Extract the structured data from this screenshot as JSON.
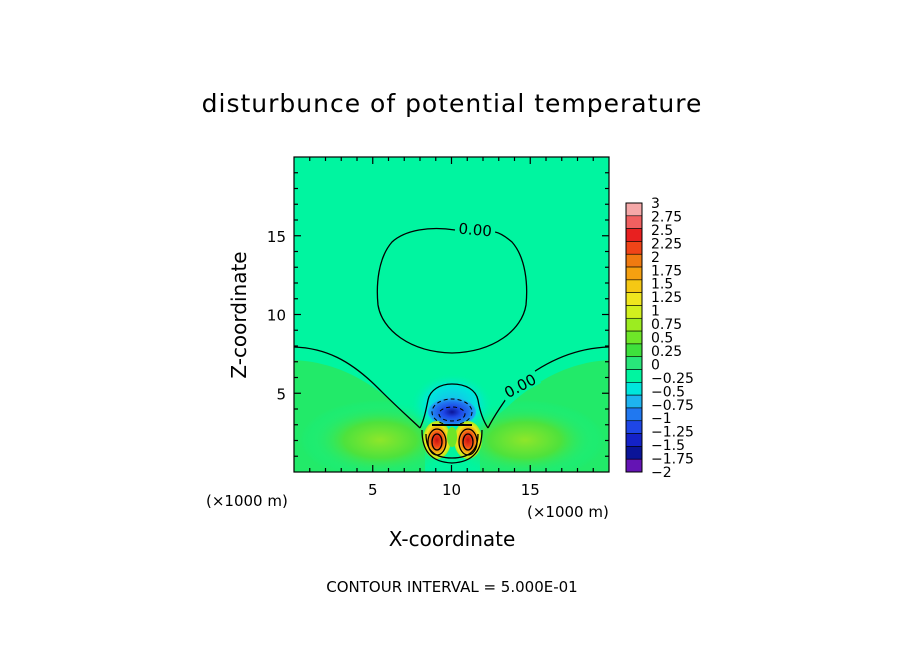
{
  "chart_data": {
    "type": "heatmap",
    "title": "disturbunce of potential temperature",
    "xlabel": "X-coordinate",
    "ylabel": "Z-coordinate",
    "x_unit_label": "(×1000 m)",
    "y_unit_label": "(×1000 m)",
    "footer": "CONTOUR INTERVAL = 5.000E-01",
    "xlim": [
      0,
      20
    ],
    "ylim": [
      0,
      20
    ],
    "xticks": [
      5,
      10,
      15
    ],
    "yticks": [
      5,
      10,
      15
    ],
    "contour_labels": [
      {
        "text": "0.00",
        "x": 11.5,
        "z": 15.3
      },
      {
        "text": "0.00",
        "x": 14.4,
        "z": 5.4
      }
    ],
    "colorbar": {
      "min": -2,
      "max": 3,
      "step": 0.25,
      "labels": [
        "3",
        "2.75",
        "2.5",
        "2.25",
        "2",
        "1.75",
        "1.5",
        "1.25",
        "1",
        "0.75",
        "0.5",
        "0.25",
        "0",
        "−0.25",
        "−0.5",
        "−0.75",
        "−1",
        "−1.25",
        "−1.5",
        "−1.75",
        "−2"
      ],
      "colors": [
        "#f5a8a8",
        "#f06060",
        "#e82020",
        "#f04418",
        "#f07a10",
        "#f5a010",
        "#f5c814",
        "#f0e61e",
        "#d2f01e",
        "#9cec20",
        "#6ee628",
        "#3ee03c",
        "#28e67a",
        "#00f5a0",
        "#00e6dc",
        "#1eb4f0",
        "#2078f0",
        "#1e46e6",
        "#1422c8",
        "#0a1498",
        "#6414b4"
      ]
    },
    "field_description_colors": {
      "background": "#00f5a0",
      "warm_lower": "#3ee03c",
      "cold_core": "#1e46e6",
      "hot_core": "#e82020"
    }
  }
}
